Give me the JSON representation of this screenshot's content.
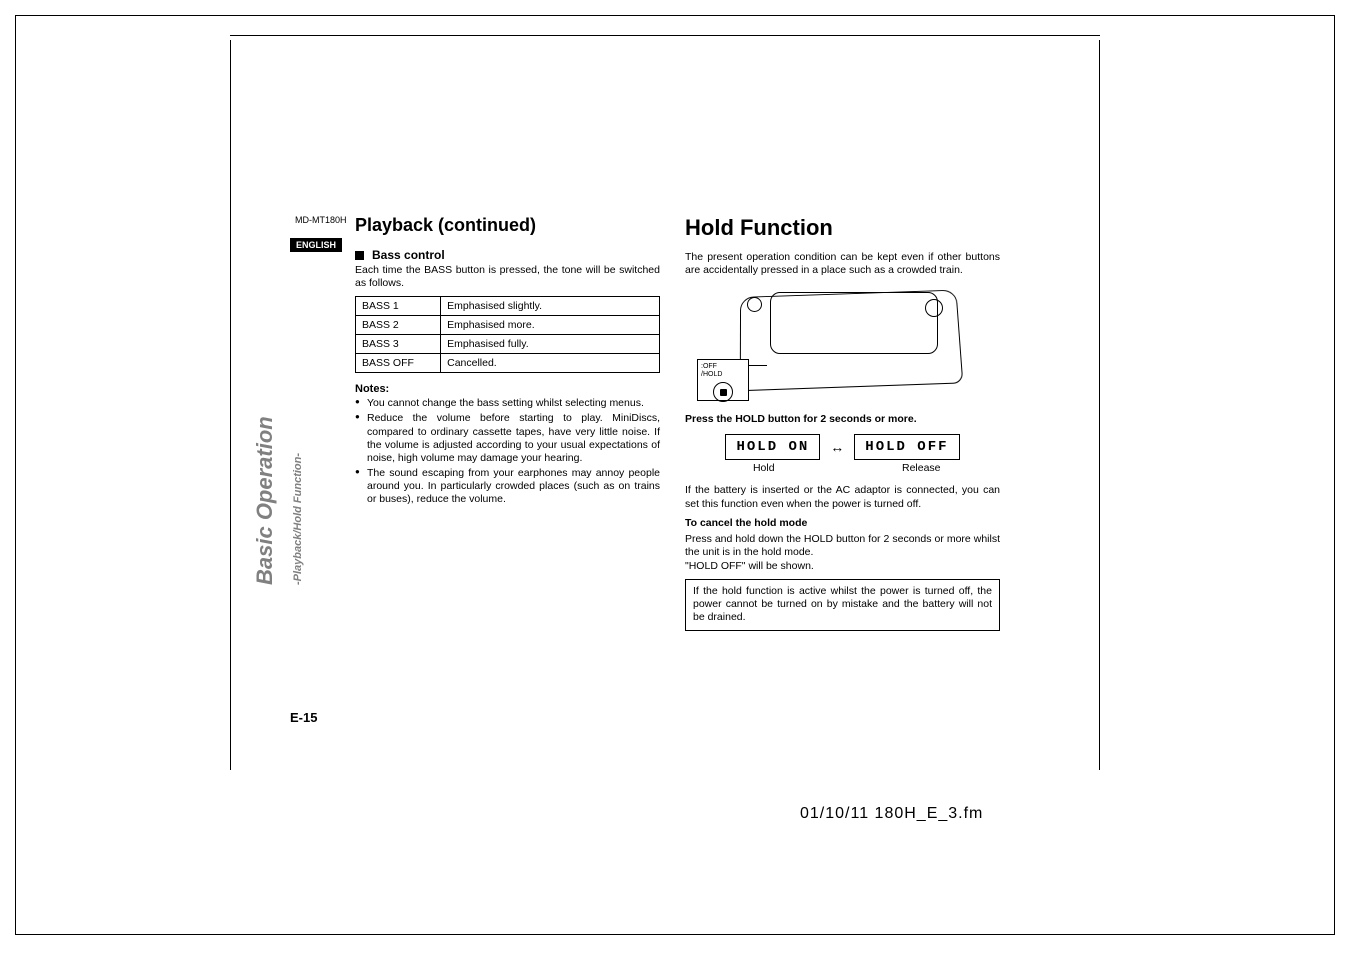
{
  "meta": {
    "model_code": "MD-MT180H",
    "language_badge": "ENGLISH",
    "page_number": "E-15",
    "footer": "01/10/11    180H_E_3.fm",
    "side_main": "Basic Operation",
    "side_sub": "-Playback/Hold Function-"
  },
  "left": {
    "heading": "Playback (continued)",
    "sub_heading": "Bass control",
    "intro": "Each time the BASS button is pressed, the tone will be switched as follows.",
    "bass_table": {
      "rows": [
        [
          "BASS 1",
          "Emphasised slightly."
        ],
        [
          "BASS 2",
          "Emphasised more."
        ],
        [
          "BASS 3",
          "Emphasised fully."
        ],
        [
          "BASS OFF",
          "Cancelled."
        ]
      ]
    },
    "notes_heading": "Notes:",
    "notes": [
      "You cannot change the bass setting whilst selecting menus.",
      "Reduce the volume before starting to play. MiniDiscs, compared to ordinary cassette tapes, have very little noise. If the volume is adjusted according to your usual expectations of noise, high volume may damage your hearing.",
      "The sound escaping from your earphones may annoy people around you. In particularly crowded places (such as on trains or buses), reduce the volume."
    ]
  },
  "right": {
    "heading": "Hold Function",
    "intro": "The present operation condition can be kept even if other buttons are accidentally pressed in a place such as a crowded train.",
    "hold_label": ":OFF\n/HOLD",
    "instruction_bold": "Press the HOLD button for 2 seconds or more.",
    "lcd_on": "HOLD ON",
    "lcd_off": "HOLD OFF",
    "lcd_label_on": "Hold",
    "lcd_label_off": "Release",
    "after_lcd": "If the battery is inserted or the AC adaptor is connected, you can set this function even when the power is turned off.",
    "cancel_heading": "To cancel the hold mode",
    "cancel_body1": "Press and hold down the HOLD button for 2 seconds or more whilst the unit is in the hold mode.",
    "cancel_body2": "\"HOLD OFF\" will be shown.",
    "info_box": "If the hold function is active whilst the power is turned off, the power cannot be turned on by mistake and the battery will not be drained."
  },
  "colors": {
    "text": "#000000",
    "background": "#ffffff",
    "side_gray": "#808080"
  }
}
